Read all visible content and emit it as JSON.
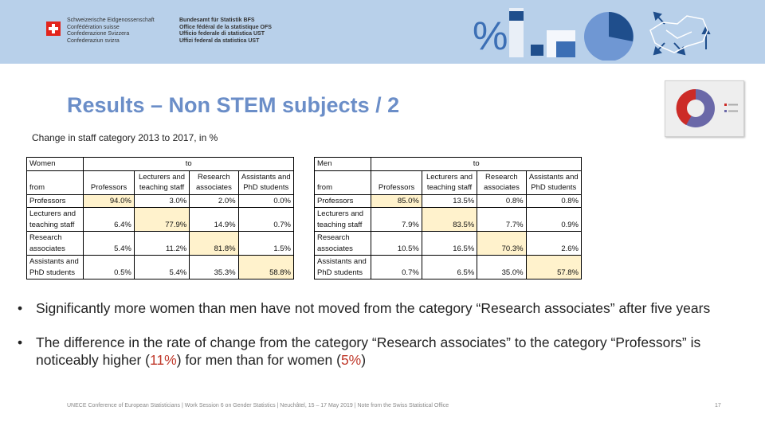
{
  "header": {
    "confederation": [
      "Schweizerische Eidgenossenschaft",
      "Confédération suisse",
      "Confederazione Svizzera",
      "Confederaziun svizra"
    ],
    "office": [
      "Bundesamt für Statistik BFS",
      "Office fédéral de la statistique OFS",
      "Ufficio federale di statistica UST",
      "Uffizi federal da statistica UST"
    ],
    "percent_symbol": "%",
    "icons": [
      "swiss-flag-icon",
      "bar-blocks-icon",
      "pie-icon",
      "arrows-icon",
      "swiss-map-icon"
    ]
  },
  "title": "Results – Non STEM subjects / 2",
  "subtitle": "Change in staff category 2013 to 2017, in %",
  "tables": {
    "women": {
      "group": "Women",
      "to": "to",
      "from": "from",
      "col_headers": [
        "Professors",
        "Lecturers and teaching staff",
        "Research associates",
        "Assistants and PhD students"
      ],
      "rows": [
        {
          "label": "Professors",
          "values": [
            "94.0%",
            "3.0%",
            "2.0%",
            "0.0%"
          ],
          "highlight": 0
        },
        {
          "label": "Lecturers and teaching staff",
          "values": [
            "6.4%",
            "77.9%",
            "14.9%",
            "0.7%"
          ],
          "highlight": 1
        },
        {
          "label": "Research associates",
          "values": [
            "5.4%",
            "11.2%",
            "81.8%",
            "1.5%"
          ],
          "highlight": 2
        },
        {
          "label": "Assistants and PhD students",
          "values": [
            "0.5%",
            "5.4%",
            "35.3%",
            "58.8%"
          ],
          "highlight": 3
        }
      ]
    },
    "men": {
      "group": "Men",
      "to": "to",
      "from": "from",
      "col_headers": [
        "Professors",
        "Lecturers and teaching staff",
        "Research associates",
        "Assistants and PhD students"
      ],
      "rows": [
        {
          "label": "Professors",
          "values": [
            "85.0%",
            "13.5%",
            "0.8%",
            "0.8%"
          ],
          "highlight": 0
        },
        {
          "label": "Lecturers and teaching staff",
          "values": [
            "7.9%",
            "83.5%",
            "7.7%",
            "0.9%"
          ],
          "highlight": 1
        },
        {
          "label": "Research associates",
          "values": [
            "10.5%",
            "16.5%",
            "70.3%",
            "2.6%"
          ],
          "highlight": 2
        },
        {
          "label": "Assistants and PhD students",
          "values": [
            "0.7%",
            "6.5%",
            "35.0%",
            "57.8%"
          ],
          "highlight": 3
        }
      ]
    }
  },
  "bullets": {
    "b1": "Significantly more women than men have not moved from the category “Research associates” after five years",
    "b2_pre": "The difference in the rate of change from the category “Research associates” to the category “Professors” is noticeably higher (",
    "b2_hl1": "11%",
    "b2_mid": ") for men than for women (",
    "b2_hl2": "5%",
    "b2_post": ")"
  },
  "footer": "UNECE Conference of European Statisticians | Work Session 6 on Gender Statistics | Neuchâtel, 15 – 17 May 2019 | Note from the Swiss Statistical Office",
  "page_number": "17",
  "colors": {
    "header_bg": "#b8d0ea",
    "title": "#6b8ec8",
    "cell_highlight": "#fff2cc",
    "emphasis_red": "#c0392b",
    "accent_blue": "#3c6fb5",
    "dark_blue": "#1f4e8c"
  }
}
